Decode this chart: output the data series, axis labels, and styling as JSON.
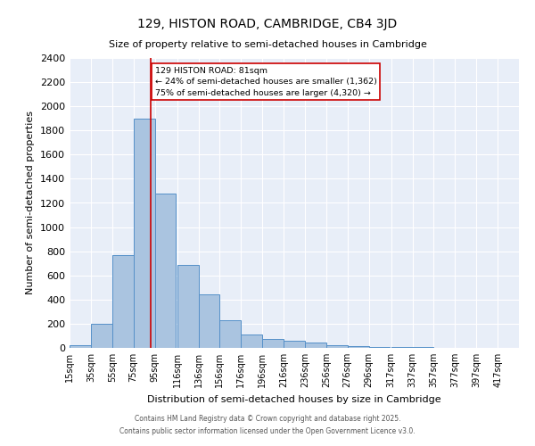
{
  "title": "129, HISTON ROAD, CAMBRIDGE, CB4 3JD",
  "subtitle": "Size of property relative to semi-detached houses in Cambridge",
  "xlabel": "Distribution of semi-detached houses by size in Cambridge",
  "ylabel": "Number of semi-detached properties",
  "categories": [
    "15sqm",
    "35sqm",
    "55sqm",
    "75sqm",
    "95sqm",
    "116sqm",
    "136sqm",
    "156sqm",
    "176sqm",
    "196sqm",
    "216sqm",
    "236sqm",
    "256sqm",
    "276sqm",
    "296sqm",
    "317sqm",
    "337sqm",
    "357sqm",
    "377sqm",
    "397sqm",
    "417sqm"
  ],
  "values": [
    25,
    200,
    770,
    1900,
    1280,
    690,
    440,
    230,
    110,
    75,
    60,
    45,
    20,
    15,
    10,
    5,
    5,
    2,
    2,
    1,
    2
  ],
  "bar_color": "#aac4e0",
  "bar_edge_color": "#5590c8",
  "property_line_x": 81,
  "property_line_color": "#cc0000",
  "annotation_text": "129 HISTON ROAD: 81sqm\n← 24% of semi-detached houses are smaller (1,362)\n75% of semi-detached houses are larger (4,320) →",
  "annotation_box_color": "#ffffff",
  "annotation_box_edge_color": "#cc0000",
  "ylim": [
    0,
    2400
  ],
  "yticks": [
    0,
    200,
    400,
    600,
    800,
    1000,
    1200,
    1400,
    1600,
    1800,
    2000,
    2200,
    2400
  ],
  "background_color": "#e8eef8",
  "grid_color": "#ffffff",
  "footer_line1": "Contains HM Land Registry data © Crown copyright and database right 2025.",
  "footer_line2": "Contains public sector information licensed under the Open Government Licence v3.0.",
  "bin_starts": [
    5,
    25,
    45,
    65,
    85,
    106,
    126,
    146,
    166,
    186,
    206,
    226,
    246,
    266,
    286,
    307,
    327,
    347,
    367,
    387,
    407
  ],
  "bin_width": 20
}
